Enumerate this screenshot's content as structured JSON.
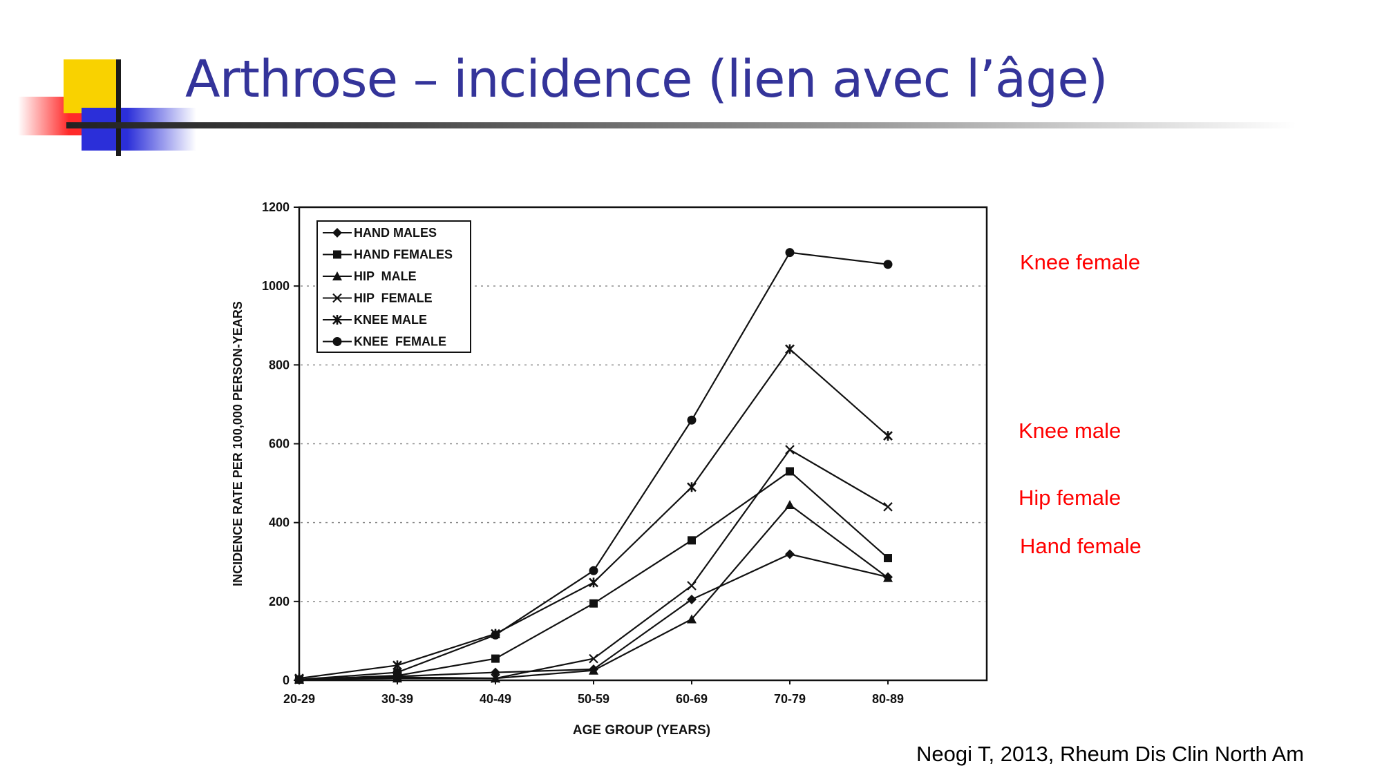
{
  "slide": {
    "title": "Arthrose – incidence (lien avec l’âge)",
    "citation": "Neogi T, 2013, Rheum Dis Clin North Am",
    "annotations": [
      "Knee female",
      "Knee male",
      "Hip female",
      "Hand female"
    ],
    "annotation_color": "#ff0000",
    "title_color": "#34349a"
  },
  "chart_data": {
    "type": "line",
    "title": "",
    "xlabel": "AGE GROUP (YEARS)",
    "ylabel": "INCIDENCE RATE PER 100,000 PERSON-YEARS",
    "categories": [
      "20-29",
      "30-39",
      "40-49",
      "50-59",
      "60-69",
      "70-79",
      "80-89"
    ],
    "ylim": [
      0,
      1200
    ],
    "yticks": [
      0,
      200,
      400,
      600,
      800,
      1000,
      1200
    ],
    "grid": "dotted horizontal",
    "legend": "top-left",
    "series": [
      {
        "name": "HAND MALES",
        "marker": "diamond",
        "values": [
          2,
          10,
          20,
          28,
          205,
          320,
          262
        ]
      },
      {
        "name": "HAND FEMALES",
        "marker": "square",
        "values": [
          2,
          12,
          55,
          195,
          355,
          530,
          310
        ]
      },
      {
        "name": "HIP  MALE",
        "marker": "triangle",
        "values": [
          2,
          5,
          5,
          25,
          155,
          445,
          260
        ]
      },
      {
        "name": "HIP  FEMALE",
        "marker": "x",
        "values": [
          2,
          8,
          5,
          55,
          240,
          585,
          440
        ]
      },
      {
        "name": "KNEE MALE",
        "marker": "star",
        "values": [
          5,
          38,
          118,
          248,
          490,
          840,
          620
        ]
      },
      {
        "name": "KNEE  FEMALE",
        "marker": "circle",
        "values": [
          2,
          20,
          115,
          278,
          660,
          1085,
          1055
        ]
      }
    ]
  }
}
